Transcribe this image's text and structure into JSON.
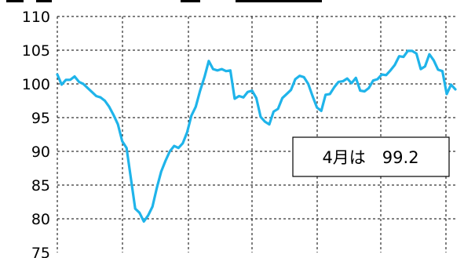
{
  "chart_data": {
    "type": "line",
    "ylim": [
      75,
      110
    ],
    "yticks": [
      "110",
      "105",
      "100",
      "95",
      "90",
      "85",
      "80",
      "75"
    ],
    "ytick_values": [
      110,
      105,
      100,
      95,
      90,
      85,
      80,
      75
    ],
    "grid": true,
    "series": [
      {
        "color": "#1fb4ea",
        "values": [
          101.4,
          99.9,
          100.6,
          100.6,
          101.1,
          100.3,
          100.0,
          99.4,
          98.8,
          98.2,
          98.0,
          97.5,
          96.6,
          95.4,
          94.0,
          91.5,
          90.5,
          86.0,
          81.5,
          80.9,
          79.6,
          80.5,
          81.8,
          84.6,
          87.0,
          88.6,
          90.0,
          90.8,
          90.5,
          91.2,
          92.8,
          95.3,
          96.6,
          99.0,
          101.0,
          103.4,
          102.2,
          102.0,
          102.2,
          101.9,
          102.0,
          97.8,
          98.2,
          98.0,
          98.8,
          99.0,
          97.9,
          95.1,
          94.4,
          94.0,
          95.9,
          96.3,
          97.9,
          98.5,
          99.1,
          100.7,
          101.2,
          101.0,
          100.0,
          98.2,
          96.5,
          96.0,
          98.4,
          98.5,
          99.5,
          100.3,
          100.4,
          100.8,
          100.1,
          100.9,
          99.0,
          98.9,
          99.4,
          100.5,
          100.7,
          101.4,
          101.3,
          102.0,
          102.8,
          104.1,
          104.0,
          104.9,
          104.9,
          104.5,
          102.2,
          102.6,
          104.4,
          103.5,
          102.1,
          101.9,
          98.5,
          99.9,
          99.2
        ]
      }
    ],
    "annotation": "4月は　99.2"
  }
}
